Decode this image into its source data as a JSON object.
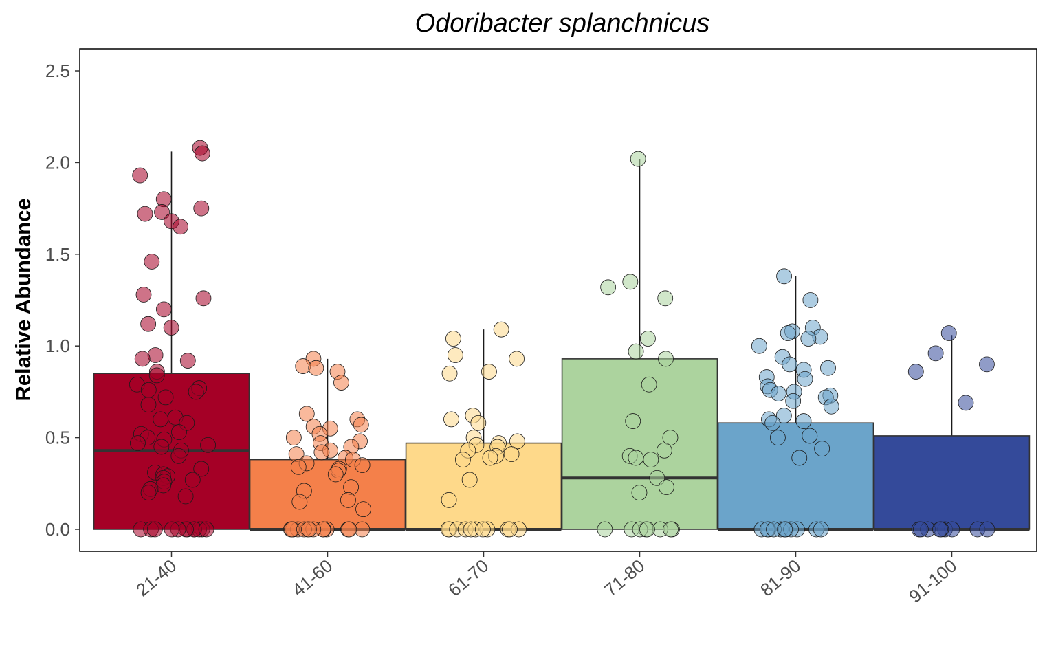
{
  "chart_data": {
    "type": "box",
    "title": "Odoribacter splanchnicus",
    "xlabel": "",
    "ylabel": "Relative Abundance",
    "ylim": [
      -0.12,
      2.62
    ],
    "yticks": [
      "0.0",
      "0.5",
      "1.0",
      "1.5",
      "2.0",
      "2.5"
    ],
    "ytick_values": [
      0,
      0.5,
      1.0,
      1.5,
      2.0,
      2.5
    ],
    "grid": false,
    "legend": "none",
    "categories": [
      "21-40",
      "41-60",
      "61-70",
      "71-80",
      "81-90",
      "91-100"
    ],
    "boxes": [
      {
        "category": "21-40",
        "q1": 0.0,
        "median": 0.43,
        "q3": 0.85,
        "whisker_low": 0.0,
        "whisker_high": 2.06,
        "color": "#a50026"
      },
      {
        "category": "41-60",
        "q1": 0.0,
        "median": 0.0,
        "q3": 0.38,
        "whisker_low": 0.0,
        "whisker_high": 0.93,
        "color": "#f4804a"
      },
      {
        "category": "61-70",
        "q1": 0.0,
        "median": 0.0,
        "q3": 0.47,
        "whisker_low": 0.0,
        "whisker_high": 1.09,
        "color": "#fed98a"
      },
      {
        "category": "71-80",
        "q1": 0.0,
        "median": 0.28,
        "q3": 0.93,
        "whisker_low": 0.0,
        "whisker_high": 2.02,
        "color": "#acd39e"
      },
      {
        "category": "81-90",
        "q1": 0.0,
        "median": 0.0,
        "q3": 0.58,
        "whisker_low": 0.0,
        "whisker_high": 1.38,
        "color": "#6ba4ca"
      },
      {
        "category": "91-100",
        "q1": 0.0,
        "median": 0.0,
        "q3": 0.51,
        "whisker_low": 0.0,
        "whisker_high": 1.06,
        "color": "#344a9a"
      }
    ],
    "points": [
      {
        "category": "21-40",
        "values": [
          2.08,
          2.05,
          1.93,
          1.8,
          1.75,
          1.72,
          1.73,
          1.68,
          1.65,
          1.46,
          1.28,
          1.26,
          1.2,
          1.12,
          1.1,
          0.95,
          0.93,
          0.92,
          0.86,
          0.84,
          0.79,
          0.77,
          0.76,
          0.75,
          0.72,
          0.68,
          0.61,
          0.6,
          0.58,
          0.53,
          0.52,
          0.5,
          0.49,
          0.47,
          0.46,
          0.45,
          0.43,
          0.4,
          0.33,
          0.31,
          0.3,
          0.29,
          0.28,
          0.27,
          0.26,
          0.24,
          0.22,
          0.2,
          0.18,
          0.0,
          0.0,
          0.0,
          0.0,
          0.0,
          0.0,
          0.0,
          0.0,
          0.0,
          0.0,
          0.0,
          0.0
        ]
      },
      {
        "category": "41-60",
        "values": [
          0.93,
          0.89,
          0.88,
          0.86,
          0.8,
          0.63,
          0.6,
          0.57,
          0.56,
          0.55,
          0.52,
          0.5,
          0.48,
          0.47,
          0.45,
          0.43,
          0.42,
          0.41,
          0.39,
          0.38,
          0.36,
          0.35,
          0.34,
          0.33,
          0.32,
          0.3,
          0.23,
          0.21,
          0.16,
          0.15,
          0.11,
          0.0,
          0.0,
          0.0,
          0.0,
          0.0,
          0.0,
          0.0,
          0.0,
          0.0,
          0.0,
          0.0,
          0.0,
          0.0,
          0.0
        ]
      },
      {
        "category": "61-70",
        "values": [
          1.09,
          1.04,
          0.95,
          0.93,
          0.86,
          0.85,
          0.62,
          0.6,
          0.58,
          0.5,
          0.48,
          0.47,
          0.46,
          0.45,
          0.43,
          0.41,
          0.4,
          0.39,
          0.38,
          0.27,
          0.16,
          0.0,
          0.0,
          0.0,
          0.0,
          0.0,
          0.0,
          0.0,
          0.0,
          0.0,
          0.0,
          0.0
        ]
      },
      {
        "category": "71-80",
        "values": [
          2.02,
          1.35,
          1.32,
          1.26,
          1.04,
          0.97,
          0.93,
          0.79,
          0.59,
          0.5,
          0.43,
          0.4,
          0.39,
          0.38,
          0.28,
          0.23,
          0.2,
          0.0,
          0.0,
          0.0,
          0.0,
          0.0,
          0.0,
          0.0,
          0.0
        ]
      },
      {
        "category": "81-90",
        "values": [
          1.38,
          1.25,
          1.1,
          1.08,
          1.07,
          1.05,
          1.04,
          1.0,
          0.94,
          0.9,
          0.88,
          0.87,
          0.83,
          0.82,
          0.78,
          0.76,
          0.75,
          0.74,
          0.73,
          0.72,
          0.7,
          0.67,
          0.62,
          0.6,
          0.59,
          0.58,
          0.51,
          0.5,
          0.44,
          0.39,
          0.0,
          0.0,
          0.0,
          0.0,
          0.0,
          0.0,
          0.0,
          0.0,
          0.0,
          0.0,
          0.0,
          0.0
        ]
      },
      {
        "category": "91-100",
        "values": [
          1.07,
          0.96,
          0.9,
          0.86,
          0.69,
          0.0,
          0.0,
          0.0,
          0.0,
          0.0,
          0.0,
          0.0,
          0.0,
          0.0
        ]
      }
    ]
  }
}
